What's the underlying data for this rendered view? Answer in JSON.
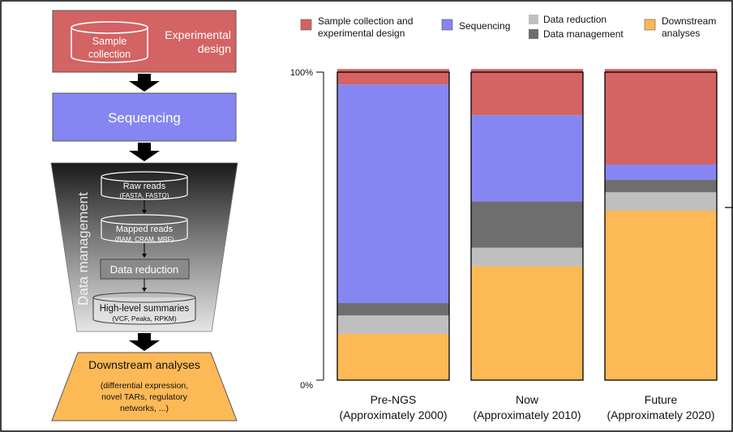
{
  "colors": {
    "sample": "#d46363",
    "sequencing": "#8686f2",
    "data_reduction": "#bfbfbf",
    "data_management": "#6e6e6e",
    "downstream": "#fdb955",
    "sample_box": "#d46363",
    "sequencing_box": "#8686f2",
    "downstream_box": "#fdb955"
  },
  "pipeline": {
    "sample_box": {
      "cylinder_line1": "Sample",
      "cylinder_line2": "collection",
      "label_line1": "Experimental",
      "label_line2": "design"
    },
    "sequencing_box": {
      "label": "Sequencing"
    },
    "data_management": {
      "vertical_label": "Data management",
      "raw_reads": {
        "title": "Raw reads",
        "subtitle": "(FASTA, FASTQ)"
      },
      "mapped_reads": {
        "title": "Mapped reads",
        "subtitle": "(BAM, CRAM, MRF)"
      },
      "data_reduction": {
        "label": "Data reduction"
      },
      "high_level": {
        "title": "High-level summaries",
        "subtitle": "(VCF, Peaks, RPKM)"
      }
    },
    "downstream_box": {
      "title": "Downstream analyses",
      "line1": "(differential expression,",
      "line2": "novel TARs, regulatory",
      "line3": "networks, ...)"
    }
  },
  "legend": {
    "sample_line1": "Sample collection and",
    "sample_line2": "experimental design",
    "sequencing": "Sequencing",
    "data_reduction": "Data reduction",
    "data_management": "Data management",
    "downstream_line1": "Downstream",
    "downstream_line2": "analyses"
  },
  "chart_data": {
    "type": "bar",
    "stacked": true,
    "categories": [
      "Pre-NGS",
      "Now",
      "Future"
    ],
    "category_sublabels": [
      "(Approximately 2000)",
      "(Approximately 2010)",
      "(Approximately 2020)"
    ],
    "y_tick_labels": [
      "0%",
      "100%"
    ],
    "ylim": [
      0,
      100
    ],
    "series": [
      {
        "name": "Downstream analyses",
        "color": "#fdb955",
        "values": [
          15,
          37,
          55
        ]
      },
      {
        "name": "Data reduction",
        "color": "#bfbfbf",
        "values": [
          6,
          6,
          6
        ]
      },
      {
        "name": "Data management",
        "color": "#6e6e6e",
        "values": [
          4,
          15,
          4
        ]
      },
      {
        "name": "Sequencing",
        "color": "#8686f2",
        "values": [
          71,
          28,
          5
        ]
      },
      {
        "name": "Sample collection and experimental design",
        "color": "#d46363",
        "values": [
          5,
          15,
          31
        ]
      }
    ]
  }
}
